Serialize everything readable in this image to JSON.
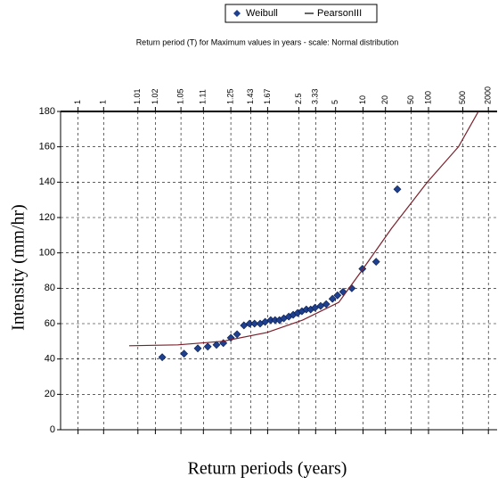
{
  "chart_data": {
    "type": "scatter",
    "subtitle": "Return period (T) for Maximum values in years - scale: Normal distribution",
    "x_label": "Return periods (years)",
    "y_label": "Intensity (mm/hr)",
    "xlim": [
      -3.57,
      3.43
    ],
    "xticks": [
      {
        "value": -3.29,
        "label": "1"
      },
      {
        "value": -2.88,
        "label": "1"
      },
      {
        "value": -2.33,
        "label": "1.01"
      },
      {
        "value": -2.05,
        "label": "1.02"
      },
      {
        "value": -1.64,
        "label": "1.05"
      },
      {
        "value": -1.28,
        "label": "1.11"
      },
      {
        "value": -0.84,
        "label": "1.25"
      },
      {
        "value": -0.52,
        "label": "1.43"
      },
      {
        "value": -0.25,
        "label": "1.67"
      },
      {
        "value": 0.25,
        "label": "2.5"
      },
      {
        "value": 0.52,
        "label": "3.33"
      },
      {
        "value": 0.84,
        "label": "5"
      },
      {
        "value": 1.28,
        "label": "10"
      },
      {
        "value": 1.64,
        "label": "20"
      },
      {
        "value": 2.05,
        "label": "50"
      },
      {
        "value": 2.33,
        "label": "100"
      },
      {
        "value": 2.88,
        "label": "500"
      },
      {
        "value": 3.29,
        "label": "2000"
      }
    ],
    "ylim": [
      0,
      180
    ],
    "yticks": [
      0,
      20,
      40,
      60,
      80,
      100,
      120,
      140,
      160,
      180
    ],
    "grid": true,
    "series": [
      {
        "name": "Weibull",
        "color": "#1f3f8f",
        "marker": "diamond",
        "x": [
          -1.94,
          -1.59,
          -1.37,
          -1.21,
          -1.07,
          -0.96,
          -0.84,
          -0.74,
          -0.63,
          -0.54,
          -0.46,
          -0.37,
          -0.29,
          -0.2,
          -0.13,
          -0.06,
          0.01,
          0.09,
          0.16,
          0.23,
          0.3,
          0.37,
          0.44,
          0.51,
          0.6,
          0.69,
          0.79,
          0.87,
          0.96,
          1.1,
          1.27,
          1.49,
          1.83
        ],
        "values": [
          41,
          43,
          46,
          47,
          48,
          49,
          52,
          54,
          59,
          60,
          60,
          60,
          61,
          62,
          62,
          62,
          63,
          64,
          65,
          66,
          67,
          68,
          68,
          69,
          70,
          71,
          74,
          76,
          78,
          80,
          91,
          95,
          136
        ]
      },
      {
        "name": "PearsonIII",
        "color": "#7b1f2a",
        "marker": "line",
        "x": [
          -2.47,
          -1.69,
          -0.97,
          -0.26,
          0.31,
          0.89,
          1.24,
          1.74,
          2.31,
          2.81,
          3.13
        ],
        "values": [
          47.5,
          48,
          50,
          55,
          62,
          72,
          89,
          114,
          140,
          160,
          180
        ]
      }
    ]
  }
}
